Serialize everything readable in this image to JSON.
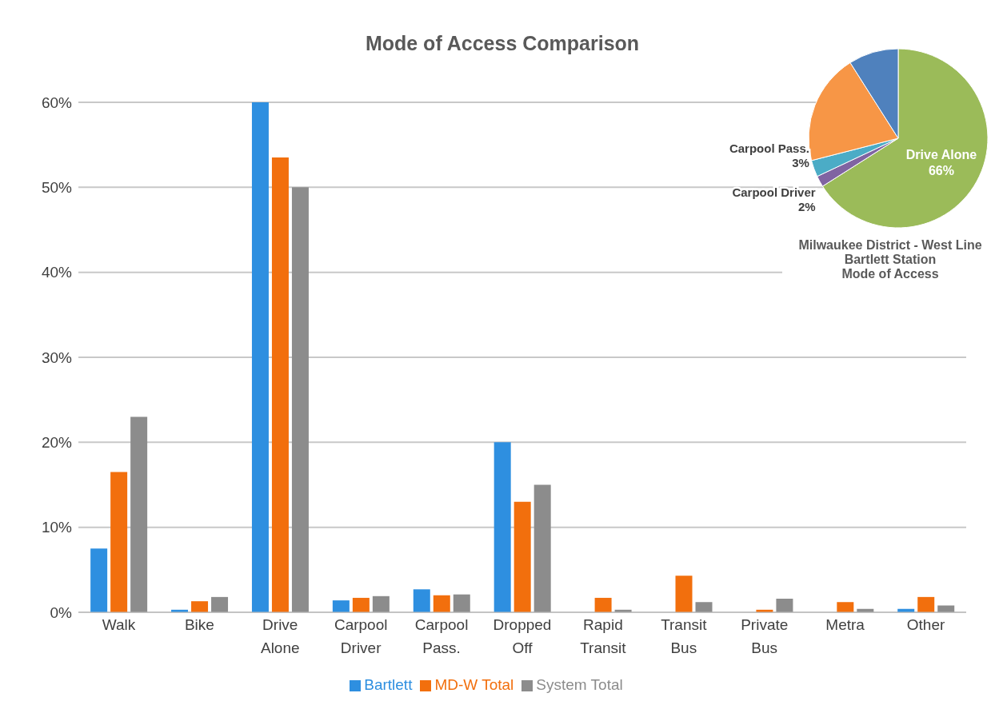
{
  "chart_data": [
    {
      "type": "bar",
      "title": "Mode of Access Comparison",
      "categories": [
        "Walk",
        "Bike",
        "Drive Alone",
        "Carpool Driver",
        "Carpool Pass.",
        "Dropped Off",
        "Rapid Transit",
        "Transit Bus",
        "Private Bus",
        "Metra",
        "Other"
      ],
      "series": [
        {
          "name": "Bartlett",
          "color": "#2e8fe0",
          "values": [
            7.5,
            0.3,
            60,
            1.4,
            2.7,
            20,
            0,
            0,
            0,
            0,
            0.4
          ]
        },
        {
          "name": "MD-W Total",
          "color": "#f26f0d",
          "values": [
            16.5,
            1.3,
            53.5,
            1.7,
            2.0,
            13,
            1.7,
            4.3,
            0.3,
            1.2,
            1.8
          ]
        },
        {
          "name": "System Total",
          "color": "#8c8c8c",
          "values": [
            23,
            1.8,
            50,
            1.9,
            2.1,
            15,
            0.3,
            1.2,
            1.6,
            0.4,
            0.8
          ]
        }
      ],
      "ylim": [
        0,
        60
      ],
      "yticks": [
        {
          "value": 0,
          "label": "0%"
        },
        {
          "value": 10,
          "label": "10%"
        },
        {
          "value": 20,
          "label": "20%"
        },
        {
          "value": 30,
          "label": "30%"
        },
        {
          "value": 40,
          "label": "40%"
        },
        {
          "value": 50,
          "label": "50%"
        },
        {
          "value": 60,
          "label": "60%"
        }
      ],
      "grid": "y",
      "legend": "bottom"
    },
    {
      "type": "pie",
      "title": "Milwaukee District - West Line\nBartlett Station\nMode of Access",
      "categories": [
        "Drive Alone",
        "Carpool Driver",
        "Carpool Pass.",
        null,
        null
      ],
      "values": [
        66,
        2,
        3,
        20,
        9
      ],
      "colors": [
        "#9bbb59",
        "#8064a2",
        "#4bacc6",
        "#f79646",
        "#4f81bd"
      ],
      "value_labels": [
        "66%",
        "2%",
        "3%",
        null,
        null
      ]
    }
  ]
}
